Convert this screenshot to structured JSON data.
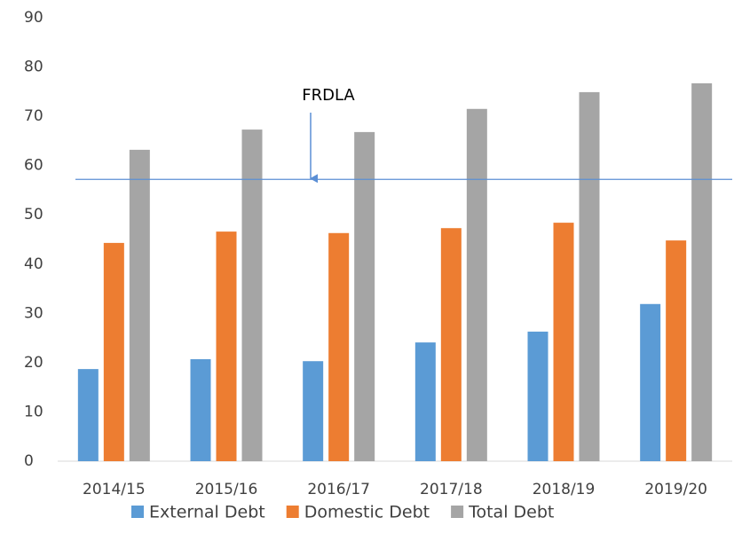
{
  "chart_data": {
    "type": "bar",
    "categories": [
      "2014/15",
      "2015/16",
      "2016/17",
      "2017/18",
      "2018/19",
      "2019/20"
    ],
    "series": [
      {
        "name": "External Debt",
        "color": "#5b9bd5",
        "values": [
          18.7,
          20.7,
          20.3,
          24.1,
          26.3,
          31.9
        ]
      },
      {
        "name": "Domestic Debt",
        "color": "#ed7d31",
        "values": [
          44.3,
          46.6,
          46.3,
          47.3,
          48.4,
          44.8
        ]
      },
      {
        "name": "Total Debt",
        "color": "#a5a5a5",
        "values": [
          63.2,
          67.3,
          66.8,
          71.5,
          74.9,
          76.7
        ]
      }
    ],
    "reference_line": {
      "value": 57.2,
      "label": "FRDLA",
      "color": "#5b8fd5"
    },
    "ylim": [
      0,
      90
    ],
    "yticks": [
      0,
      10,
      20,
      30,
      40,
      50,
      60,
      70,
      80,
      90
    ],
    "grid": false,
    "legend": "bottom"
  }
}
